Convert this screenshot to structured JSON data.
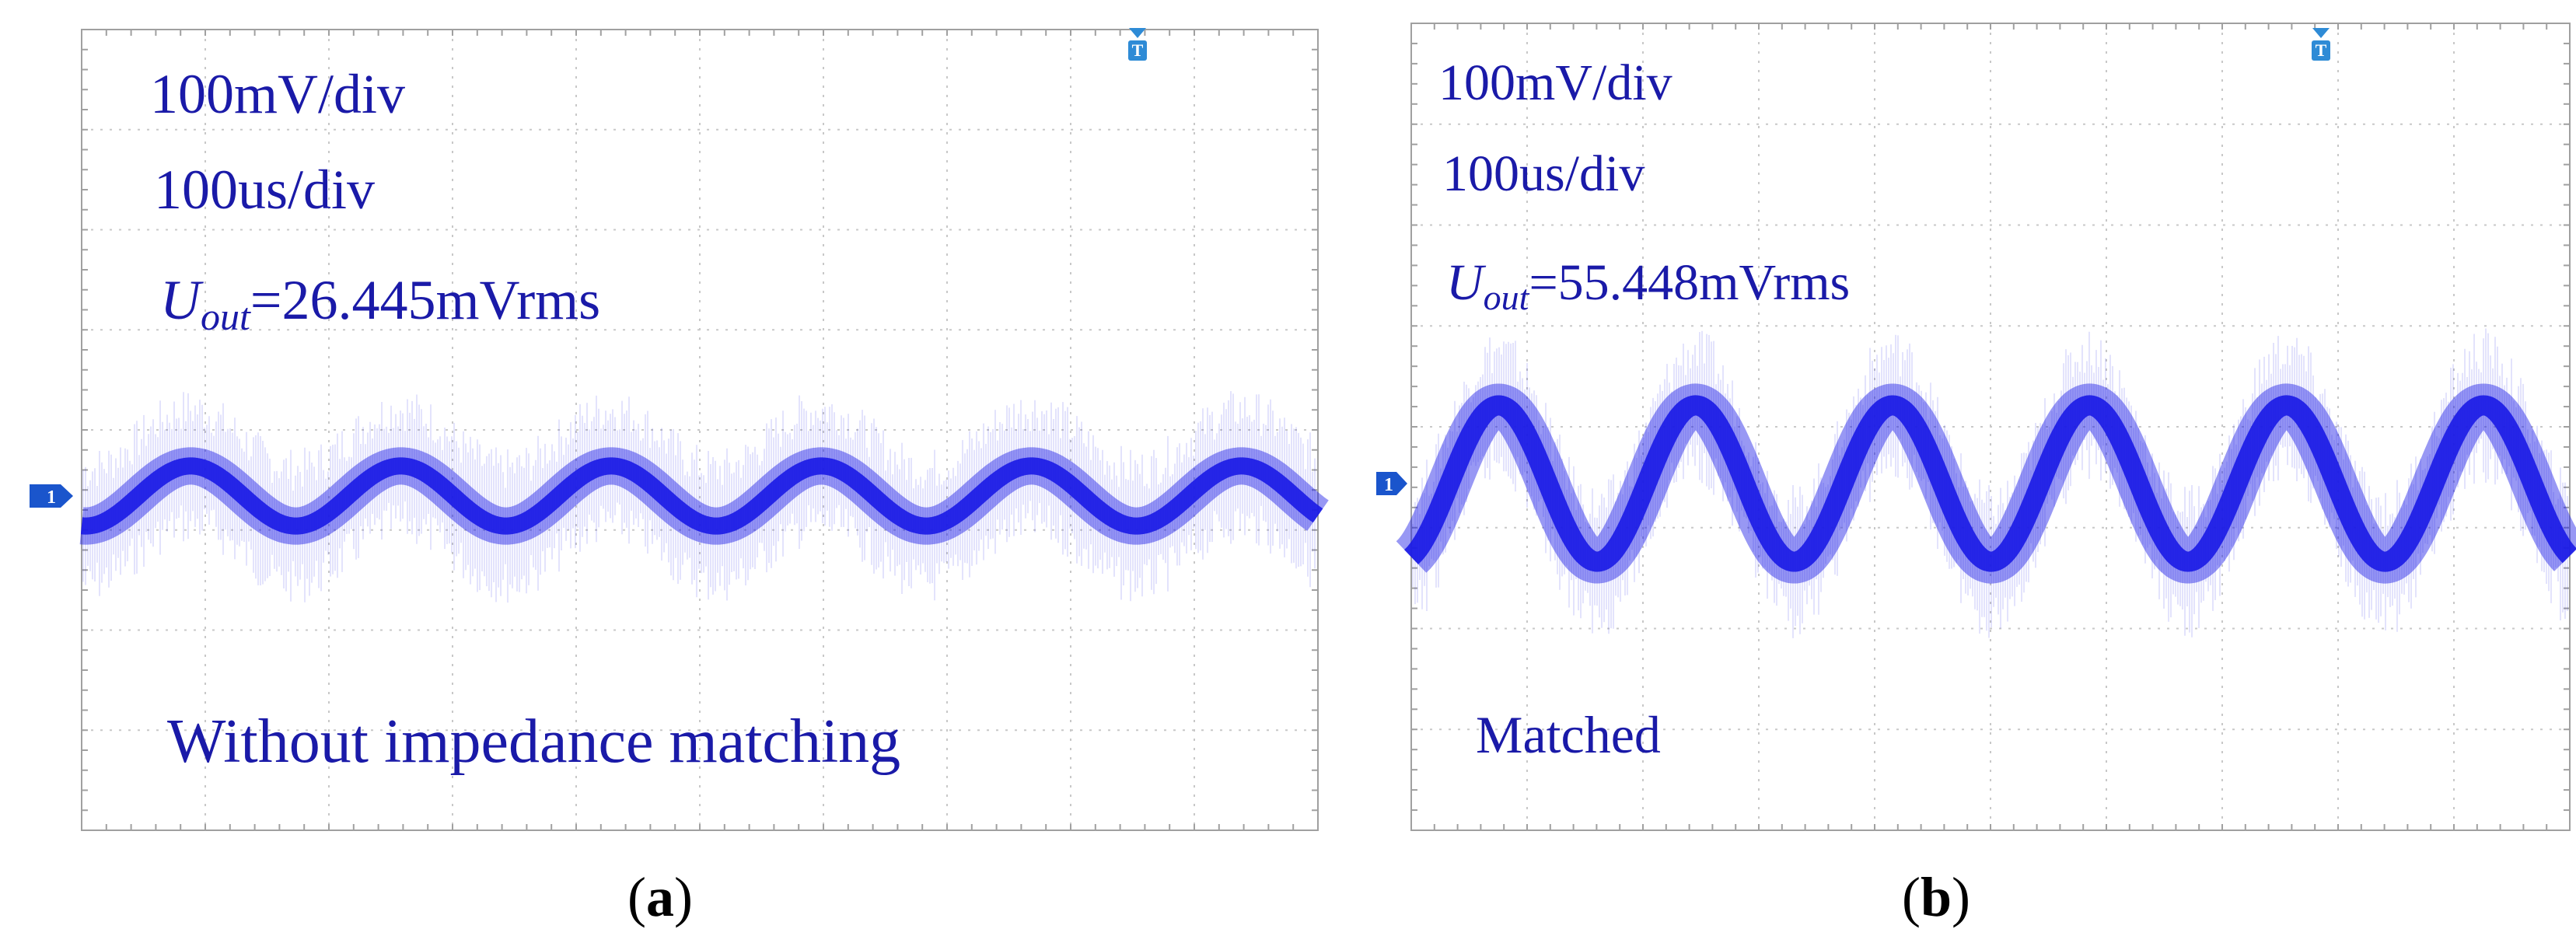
{
  "panels": [
    {
      "id": "a",
      "caption": "(a)",
      "volts_label": "100mV/div",
      "time_label": "100us/div",
      "measure_symbol": "U",
      "measure_subscript": "out",
      "measure_value": "=26.445mVrms",
      "annotation": "Without impedance matching",
      "channel_marker": "1",
      "trigger_marker": "T"
    },
    {
      "id": "b",
      "caption": "(b)",
      "volts_label": "100mV/div",
      "time_label": "100us/div",
      "measure_symbol": "U",
      "measure_subscript": "out",
      "measure_value": "=55.448mVrms",
      "annotation": "Matched",
      "channel_marker": "1",
      "trigger_marker": "T"
    }
  ],
  "colors": {
    "trace": "#1a1ae6",
    "text": "#1a1aa8",
    "grid": "#c8c8c8",
    "frame": "#a0a0a0",
    "marker": "#1a55cc"
  },
  "chart_data": [
    {
      "type": "line",
      "panel": "a",
      "grid_divisions": {
        "x": 10,
        "y": 8
      },
      "grid": true,
      "x_unit_per_div": "100us",
      "y_unit_per_div": "100mV",
      "rms_mV": 26.445,
      "series": [
        {
          "peak_to_peak_div": 0.6,
          "period_div": 1.7,
          "center_div": 0
        }
      ]
    },
    {
      "type": "line",
      "panel": "b",
      "grid_divisions": {
        "x": 10,
        "y": 8
      },
      "grid": true,
      "x_unit_per_div": "100us",
      "y_unit_per_div": "100mV",
      "rms_mV": 55.448,
      "series": [
        {
          "peak_to_peak_div": 1.55,
          "period_div": 1.7,
          "center_div": 0
        }
      ]
    }
  ]
}
